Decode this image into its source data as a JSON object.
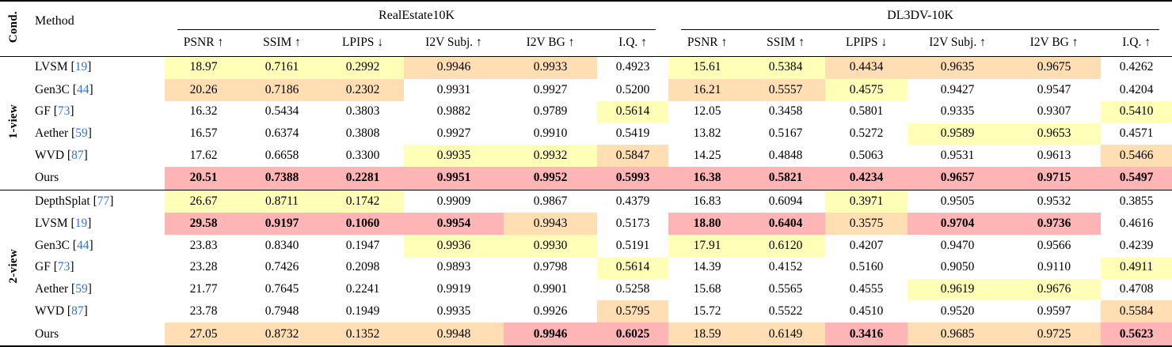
{
  "table": {
    "cond_header": "Cond.",
    "method_header": "Method",
    "cite_open": "[",
    "cite_close": "]",
    "groups": [
      {
        "label": "RealEstate10K"
      },
      {
        "label": "DL3DV-10K"
      }
    ],
    "metric_headers": [
      "PSNR ↑",
      "SSIM ↑",
      "LPIPS ↓",
      "I2V Subj. ↑",
      "I2V BG ↑",
      "I.Q. ↑"
    ],
    "colors": {
      "best": "#ffb5b5",
      "second": "#ffdeb3",
      "third": "#ffffb8",
      "cite": "#3273c8"
    },
    "sections": [
      {
        "cond": "1-view",
        "rows": [
          {
            "method": "LVSM",
            "cite": "19",
            "values": [
              "18.97",
              "0.7161",
              "0.2992",
              "0.9946",
              "0.9933",
              "0.4923",
              "15.61",
              "0.5384",
              "0.4434",
              "0.9635",
              "0.9675",
              "0.4262"
            ],
            "hl": [
              "y",
              "y",
              "y",
              "o",
              "o",
              "",
              "y",
              "y",
              "o",
              "o",
              "o",
              ""
            ]
          },
          {
            "method": "Gen3C",
            "cite": "44",
            "values": [
              "20.26",
              "0.7186",
              "0.2302",
              "0.9931",
              "0.9927",
              "0.5200",
              "16.21",
              "0.5557",
              "0.4575",
              "0.9427",
              "0.9547",
              "0.4204"
            ],
            "hl": [
              "o",
              "o",
              "o",
              "",
              "",
              "",
              "o",
              "o",
              "y",
              "",
              "",
              ""
            ]
          },
          {
            "method": "GF",
            "cite": "73",
            "values": [
              "16.32",
              "0.5434",
              "0.3803",
              "0.9882",
              "0.9789",
              "0.5614",
              "12.05",
              "0.3458",
              "0.5801",
              "0.9335",
              "0.9307",
              "0.5410"
            ],
            "hl": [
              "",
              "",
              "",
              "",
              "",
              "y",
              "",
              "",
              "",
              "",
              "",
              "y"
            ]
          },
          {
            "method": "Aether",
            "cite": "59",
            "values": [
              "16.57",
              "0.6374",
              "0.3808",
              "0.9927",
              "0.9910",
              "0.5419",
              "13.82",
              "0.5167",
              "0.5272",
              "0.9589",
              "0.9653",
              "0.4571"
            ],
            "hl": [
              "",
              "",
              "",
              "",
              "",
              "",
              "",
              "",
              "",
              "y",
              "y",
              ""
            ]
          },
          {
            "method": "WVD",
            "cite": "87",
            "values": [
              "17.62",
              "0.6658",
              "0.3300",
              "0.9935",
              "0.9932",
              "0.5847",
              "14.25",
              "0.4848",
              "0.5063",
              "0.9531",
              "0.9613",
              "0.5466"
            ],
            "hl": [
              "",
              "",
              "",
              "y",
              "y",
              "o",
              "",
              "",
              "",
              "",
              "",
              "o"
            ]
          },
          {
            "method": "Ours",
            "cite": "",
            "values": [
              "20.51",
              "0.7388",
              "0.2281",
              "0.9951",
              "0.9952",
              "0.5993",
              "16.38",
              "0.5821",
              "0.4234",
              "0.9657",
              "0.9715",
              "0.5497"
            ],
            "hl": [
              "r",
              "r",
              "r",
              "r",
              "r",
              "r",
              "r",
              "r",
              "r",
              "r",
              "r",
              "r"
            ]
          }
        ]
      },
      {
        "cond": "2-view",
        "rows": [
          {
            "method": "DepthSplat",
            "cite": "77",
            "values": [
              "26.67",
              "0.8711",
              "0.1742",
              "0.9909",
              "0.9867",
              "0.4379",
              "16.83",
              "0.6094",
              "0.3971",
              "0.9505",
              "0.9532",
              "0.3855"
            ],
            "hl": [
              "y",
              "y",
              "y",
              "",
              "",
              "",
              "",
              "",
              "y",
              "",
              "",
              ""
            ]
          },
          {
            "method": "LVSM",
            "cite": "19",
            "values": [
              "29.58",
              "0.9197",
              "0.1060",
              "0.9954",
              "0.9943",
              "0.5173",
              "18.80",
              "0.6404",
              "0.3575",
              "0.9704",
              "0.9736",
              "0.4616"
            ],
            "hl": [
              "r",
              "r",
              "r",
              "r",
              "o",
              "",
              "r",
              "r",
              "o",
              "r",
              "r",
              ""
            ]
          },
          {
            "method": "Gen3C",
            "cite": "44",
            "values": [
              "23.83",
              "0.8340",
              "0.1947",
              "0.9936",
              "0.9930",
              "0.5191",
              "17.91",
              "0.6120",
              "0.4207",
              "0.9470",
              "0.9566",
              "0.4239"
            ],
            "hl": [
              "",
              "",
              "",
              "y",
              "y",
              "",
              "y",
              "y",
              "",
              "",
              "",
              ""
            ]
          },
          {
            "method": "GF",
            "cite": "73",
            "values": [
              "23.28",
              "0.7426",
              "0.2098",
              "0.9893",
              "0.9798",
              "0.5614",
              "14.39",
              "0.4152",
              "0.5160",
              "0.9050",
              "0.9110",
              "0.4911"
            ],
            "hl": [
              "",
              "",
              "",
              "",
              "",
              "y",
              "",
              "",
              "",
              "",
              "",
              "y"
            ]
          },
          {
            "method": "Aether",
            "cite": "59",
            "values": [
              "21.77",
              "0.7645",
              "0.2241",
              "0.9919",
              "0.9901",
              "0.5258",
              "15.68",
              "0.5565",
              "0.4555",
              "0.9619",
              "0.9676",
              "0.4708"
            ],
            "hl": [
              "",
              "",
              "",
              "",
              "",
              "",
              "",
              "",
              "",
              "y",
              "y",
              ""
            ]
          },
          {
            "method": "WVD",
            "cite": "87",
            "values": [
              "23.78",
              "0.7948",
              "0.1949",
              "0.9935",
              "0.9926",
              "0.5795",
              "15.72",
              "0.5522",
              "0.4510",
              "0.9520",
              "0.9597",
              "0.5584"
            ],
            "hl": [
              "",
              "",
              "",
              "",
              "",
              "o",
              "",
              "",
              "",
              "",
              "",
              "o"
            ]
          },
          {
            "method": "Ours",
            "cite": "",
            "values": [
              "27.05",
              "0.8732",
              "0.1352",
              "0.9948",
              "0.9946",
              "0.6025",
              "18.59",
              "0.6149",
              "0.3416",
              "0.9685",
              "0.9725",
              "0.5623"
            ],
            "hl": [
              "o",
              "o",
              "o",
              "o",
              "r",
              "r",
              "o",
              "o",
              "r",
              "o",
              "o",
              "r"
            ]
          }
        ]
      }
    ]
  }
}
